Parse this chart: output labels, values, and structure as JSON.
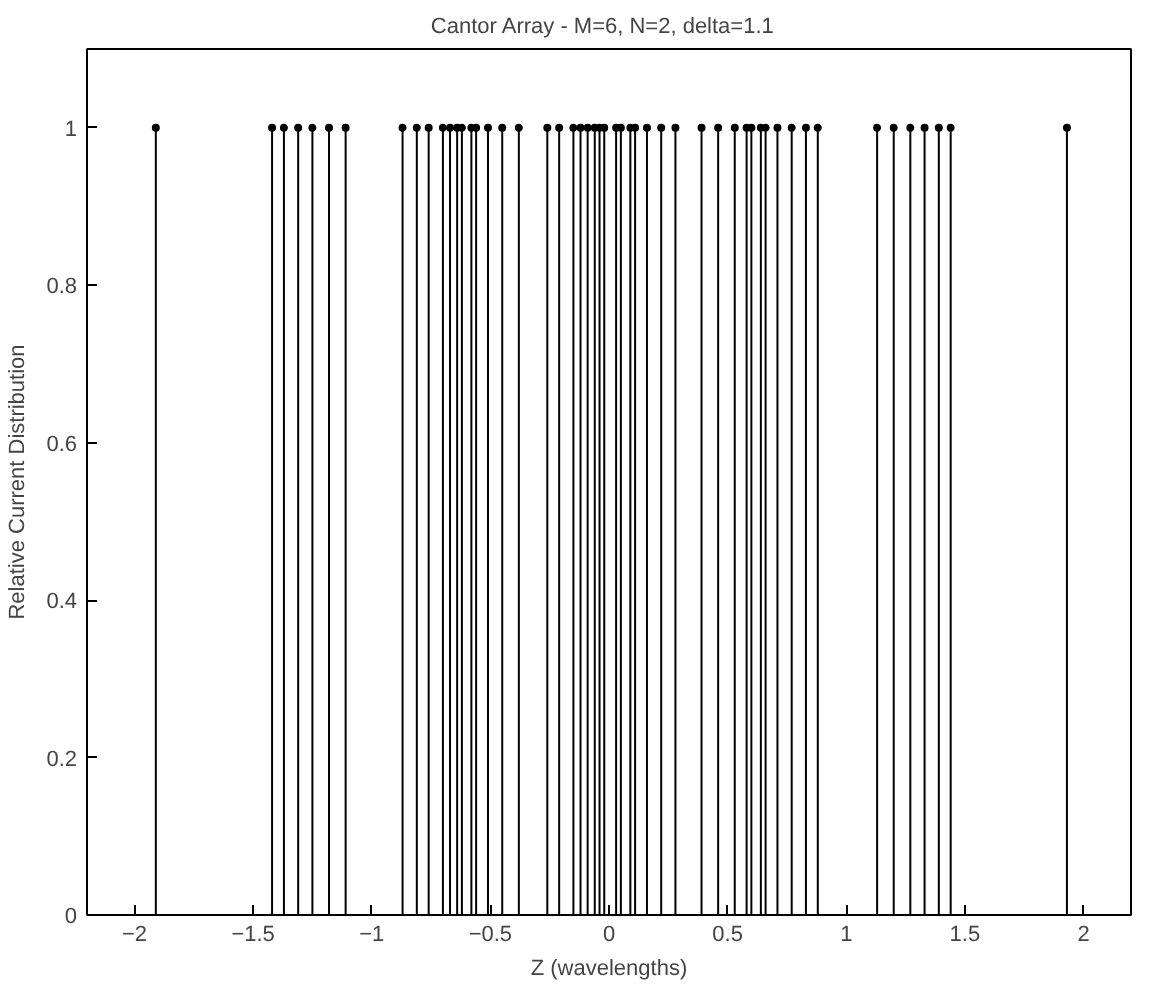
{
  "chart_data": {
    "type": "lollipop",
    "title": "Cantor Array  -  M=6, N=2, delta=1.1",
    "xlabel": "Z (wavelengths)",
    "ylabel": "Relative Current Distribution",
    "x": [
      -1.91,
      -1.42,
      -1.37,
      -1.31,
      -1.25,
      -1.18,
      -1.11,
      -0.87,
      -0.81,
      -0.76,
      -0.7,
      -0.67,
      -0.64,
      -0.62,
      -0.58,
      -0.56,
      -0.51,
      -0.45,
      -0.38,
      -0.26,
      -0.21,
      -0.15,
      -0.12,
      -0.09,
      -0.06,
      -0.04,
      -0.02,
      0.03,
      0.05,
      0.09,
      0.11,
      0.16,
      0.22,
      0.28,
      0.39,
      0.46,
      0.53,
      0.58,
      0.6,
      0.64,
      0.66,
      0.71,
      0.77,
      0.83,
      0.88,
      1.13,
      1.2,
      1.27,
      1.33,
      1.39,
      1.44,
      1.93
    ],
    "values": [
      1,
      1,
      1,
      1,
      1,
      1,
      1,
      1,
      1,
      1,
      1,
      1,
      1,
      1,
      1,
      1,
      1,
      1,
      1,
      1,
      1,
      1,
      1,
      1,
      1,
      1,
      1,
      1,
      1,
      1,
      1,
      1,
      1,
      1,
      1,
      1,
      1,
      1,
      1,
      1,
      1,
      1,
      1,
      1,
      1,
      1,
      1,
      1,
      1,
      1,
      1,
      1
    ],
    "color": "#000000",
    "marker": "circle",
    "xlim": [
      -2.2,
      2.2
    ],
    "xticks": [
      -2,
      -1.5,
      -1,
      -0.5,
      0,
      0.5,
      1,
      1.5,
      2
    ],
    "ylim": [
      0,
      1.1
    ],
    "yticks": [
      0,
      0.2,
      0.4,
      0.6,
      0.8,
      1
    ]
  }
}
